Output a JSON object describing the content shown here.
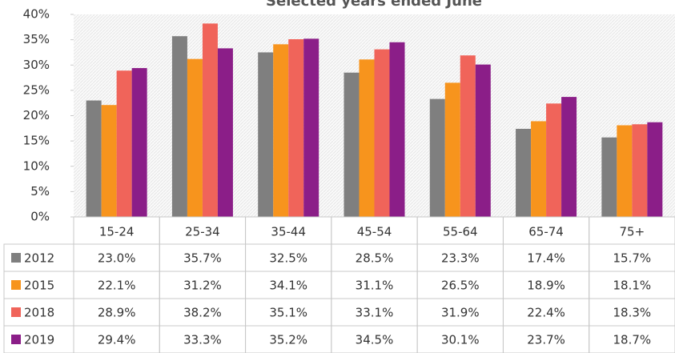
{
  "chart_data": {
    "type": "bar",
    "title": "Selected years ended June",
    "categories": [
      "15-24",
      "25-34",
      "35-44",
      "45-54",
      "55-64",
      "65-74",
      "75+"
    ],
    "series": [
      {
        "name": "2012",
        "color": "#7f7f7f",
        "values": [
          23.0,
          35.7,
          32.5,
          28.5,
          23.3,
          17.4,
          15.7
        ],
        "value_labels": [
          "23.0%",
          "35.7%",
          "32.5%",
          "28.5%",
          "23.3%",
          "17.4%",
          "15.7%"
        ]
      },
      {
        "name": "2015",
        "color": "#f7941d",
        "values": [
          22.1,
          31.2,
          34.1,
          31.1,
          26.5,
          18.9,
          18.1
        ],
        "value_labels": [
          "22.1%",
          "31.2%",
          "34.1%",
          "31.1%",
          "26.5%",
          "18.9%",
          "18.1%"
        ]
      },
      {
        "name": "2018",
        "color": "#f0645a",
        "values": [
          28.9,
          38.2,
          35.1,
          33.1,
          31.9,
          22.4,
          18.3
        ],
        "value_labels": [
          "28.9%",
          "38.2%",
          "35.1%",
          "33.1%",
          "31.9%",
          "22.4%",
          "18.3%"
        ]
      },
      {
        "name": "2019",
        "color": "#8b1e88",
        "values": [
          29.4,
          33.3,
          35.2,
          34.5,
          30.1,
          23.7,
          18.7
        ],
        "value_labels": [
          "29.4%",
          "33.3%",
          "35.2%",
          "34.5%",
          "30.1%",
          "23.7%",
          "18.7%"
        ]
      }
    ],
    "ylim": [
      0,
      40
    ],
    "yticks": [
      {
        "value": 0,
        "label": "0%"
      },
      {
        "value": 5,
        "label": "5%"
      },
      {
        "value": 10,
        "label": "10%"
      },
      {
        "value": 15,
        "label": "15%"
      },
      {
        "value": 20,
        "label": "20%"
      },
      {
        "value": 25,
        "label": "25%"
      },
      {
        "value": 30,
        "label": "30%"
      },
      {
        "value": 35,
        "label": "35%"
      },
      {
        "value": 40,
        "label": "40%"
      }
    ]
  }
}
